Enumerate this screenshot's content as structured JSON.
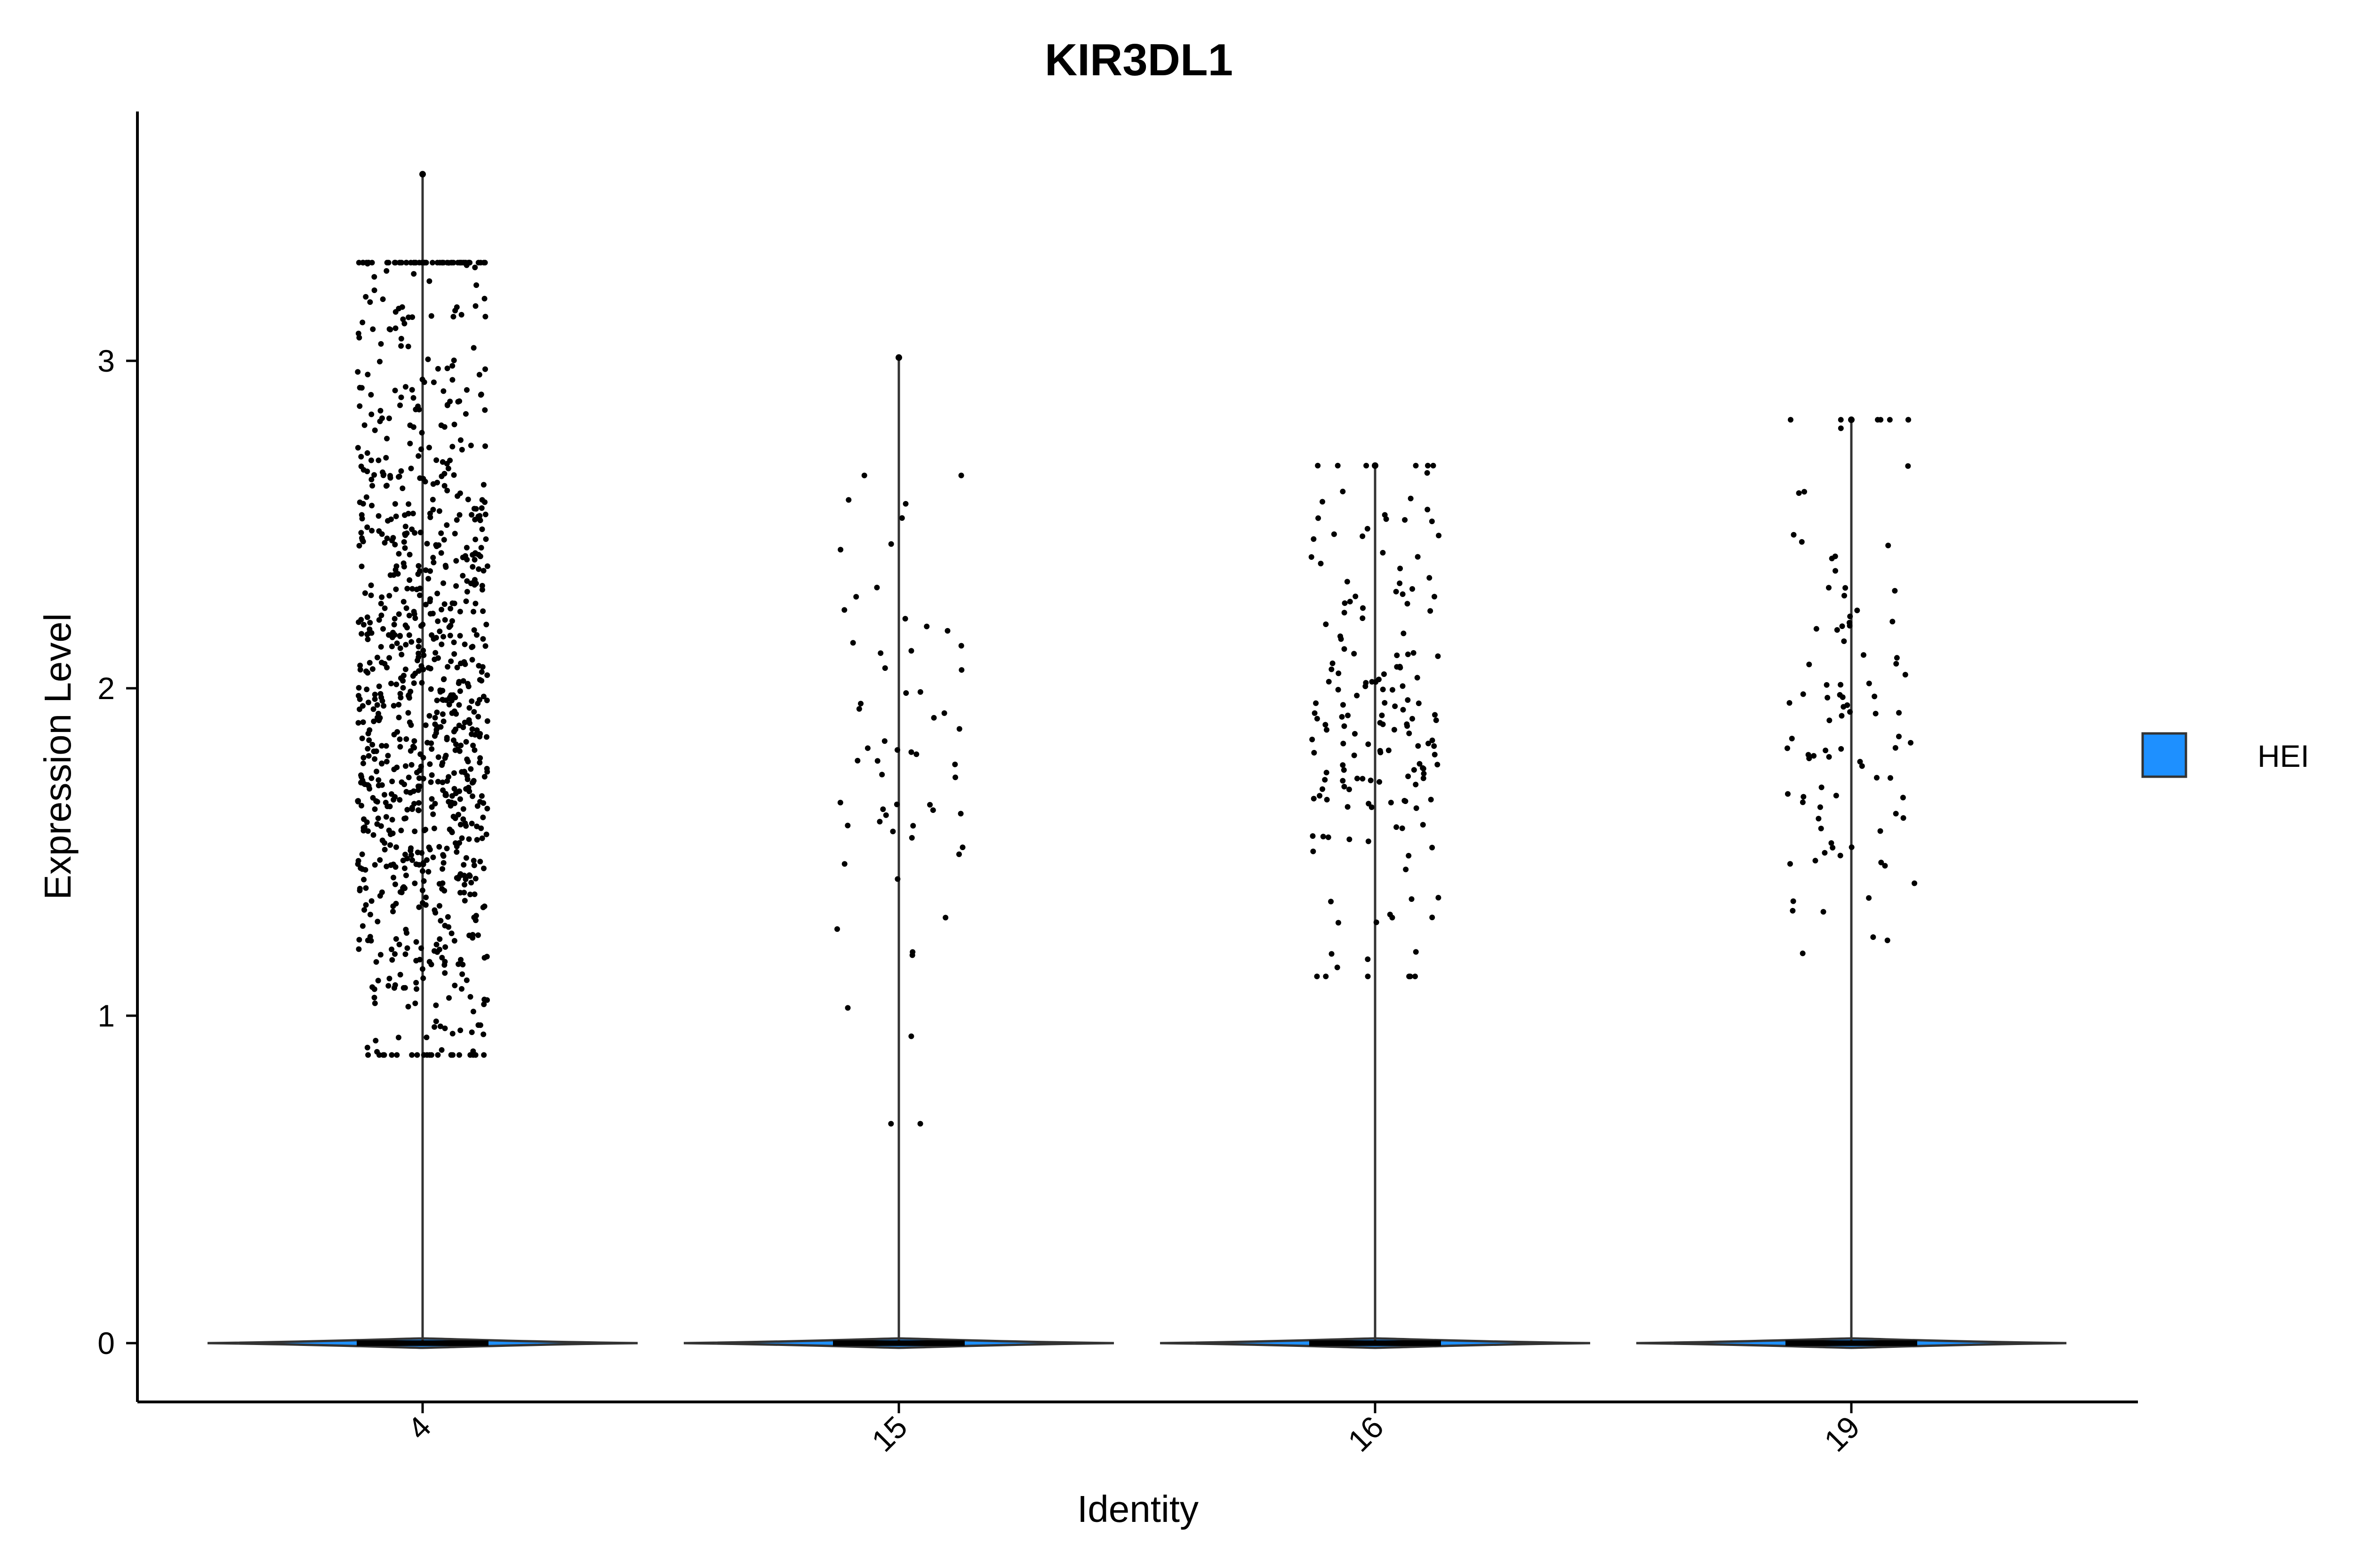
{
  "chart_data": {
    "type": "violin",
    "title": "KIR3DL1",
    "xlabel": "Identity",
    "ylabel": "Expression Level",
    "categories": [
      "4",
      "15",
      "16",
      "19"
    ],
    "yticks": [
      0,
      1,
      2,
      3
    ],
    "ylim": [
      -0.18,
      3.78
    ],
    "grid": false,
    "legend_position": "right",
    "legend": [
      {
        "name": "HEI",
        "color": "#1E90FF"
      }
    ],
    "series": [
      {
        "category": "4",
        "max": 3.57,
        "n_nonzero": 980,
        "expr_range": [
          0.88,
          3.3
        ],
        "expr_center": 1.55
      },
      {
        "category": "15",
        "max": 3.01,
        "n_nonzero": 60,
        "expr_range": [
          0.67,
          2.65
        ],
        "expr_center": 1.5
      },
      {
        "category": "16",
        "max": 2.68,
        "n_nonzero": 170,
        "expr_range": [
          1.12,
          2.68
        ],
        "expr_center": 1.7
      },
      {
        "category": "19",
        "max": 2.82,
        "n_nonzero": 95,
        "expr_range": [
          1.09,
          2.82
        ],
        "expr_center": 1.6
      }
    ]
  }
}
